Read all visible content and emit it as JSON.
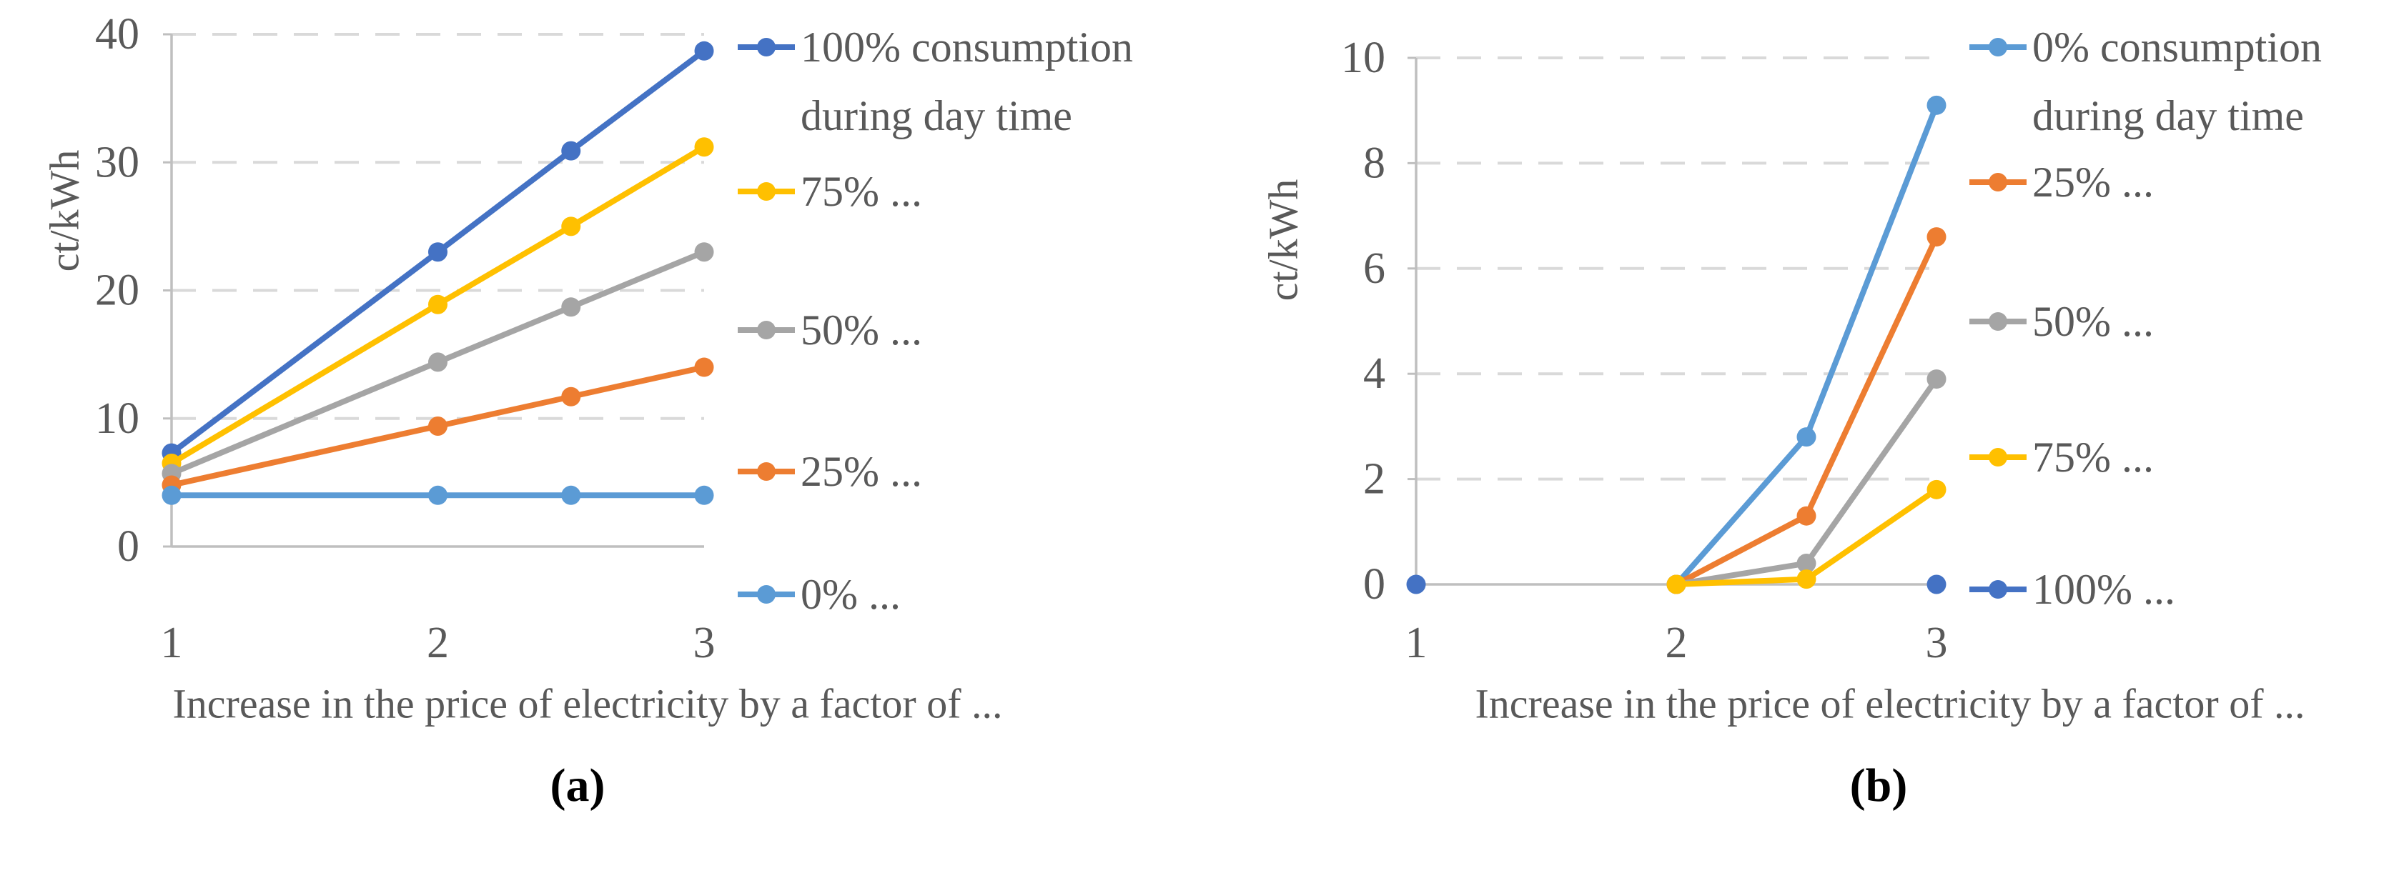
{
  "figure": {
    "type_note": "two-panel line chart figure",
    "colors": {
      "grid": "#D9D9D9",
      "axis": "#BFBFBF",
      "text": "#595959",
      "caption": "#000000"
    }
  },
  "chart_data": [
    {
      "type": "line",
      "caption": "(a)",
      "ylabel": "ct/kWh",
      "xlabel": "Increase in the price of electricity by a factor of ...",
      "xlim": [
        1,
        3
      ],
      "ylim": [
        0,
        40
      ],
      "xticks": [
        1,
        2,
        3
      ],
      "yticks": [
        0,
        10,
        20,
        30,
        40
      ],
      "grid": "horizontal dashed",
      "legend_position": "right",
      "series": [
        {
          "name": "100% consumption during day time",
          "legend_lines": [
            "100% consumption",
            "during day time"
          ],
          "color": "#4472C4",
          "x": [
            1,
            2,
            2.5,
            3
          ],
          "y": [
            7.3,
            23.0,
            30.9,
            38.7
          ],
          "line": true
        },
        {
          "name": "75% ...",
          "legend_lines": [
            "75% ..."
          ],
          "color": "#FFC000",
          "x": [
            1,
            2,
            2.5,
            3
          ],
          "y": [
            6.5,
            18.9,
            25.0,
            31.2
          ],
          "line": true
        },
        {
          "name": "50% ...",
          "legend_lines": [
            "50% ..."
          ],
          "color": "#A5A5A5",
          "x": [
            1,
            2,
            2.5,
            3
          ],
          "y": [
            5.7,
            14.4,
            18.7,
            23.0
          ],
          "line": true
        },
        {
          "name": "25% ...",
          "legend_lines": [
            "25% ..."
          ],
          "color": "#ED7D31",
          "x": [
            1,
            2,
            2.5,
            3
          ],
          "y": [
            4.8,
            9.4,
            11.7,
            14.0
          ],
          "line": true
        },
        {
          "name": "0% ...",
          "legend_lines": [
            "0% ..."
          ],
          "color": "#5B9BD5",
          "x": [
            1,
            2,
            2.5,
            3
          ],
          "y": [
            4.0,
            4.0,
            4.0,
            4.0
          ],
          "line": true
        }
      ]
    },
    {
      "type": "line",
      "caption": "(b)",
      "ylabel": "ct/kWh",
      "xlabel": "Increase in the price of electricity by a factor of ...",
      "xlim": [
        1,
        3
      ],
      "ylim": [
        0,
        10
      ],
      "xticks": [
        1,
        2,
        3
      ],
      "yticks": [
        0,
        2,
        4,
        6,
        8,
        10
      ],
      "grid": "horizontal dashed",
      "legend_position": "right",
      "series": [
        {
          "name": "0% consumption during day time",
          "legend_lines": [
            "0% consumption",
            "during day time"
          ],
          "color": "#5B9BD5",
          "x": [
            2,
            2.5,
            3
          ],
          "y": [
            0,
            2.8,
            9.1
          ],
          "line": true
        },
        {
          "name": "25% ...",
          "legend_lines": [
            "25% ..."
          ],
          "color": "#ED7D31",
          "x": [
            2,
            2.5,
            3
          ],
          "y": [
            0,
            1.3,
            6.6
          ],
          "line": true
        },
        {
          "name": "50% ...",
          "legend_lines": [
            "50% ..."
          ],
          "color": "#A5A5A5",
          "x": [
            2,
            2.5,
            3
          ],
          "y": [
            0,
            0.4,
            3.9
          ],
          "line": true
        },
        {
          "name": "75% ...",
          "legend_lines": [
            "75% ..."
          ],
          "color": "#FFC000",
          "x": [
            2,
            2.5,
            3
          ],
          "y": [
            0,
            0.1,
            1.8
          ],
          "line": true
        },
        {
          "name": "100% ...",
          "legend_lines": [
            "100% ..."
          ],
          "color": "#4472C4",
          "x": [
            1,
            3
          ],
          "y": [
            0,
            0
          ],
          "line": false
        }
      ]
    }
  ]
}
